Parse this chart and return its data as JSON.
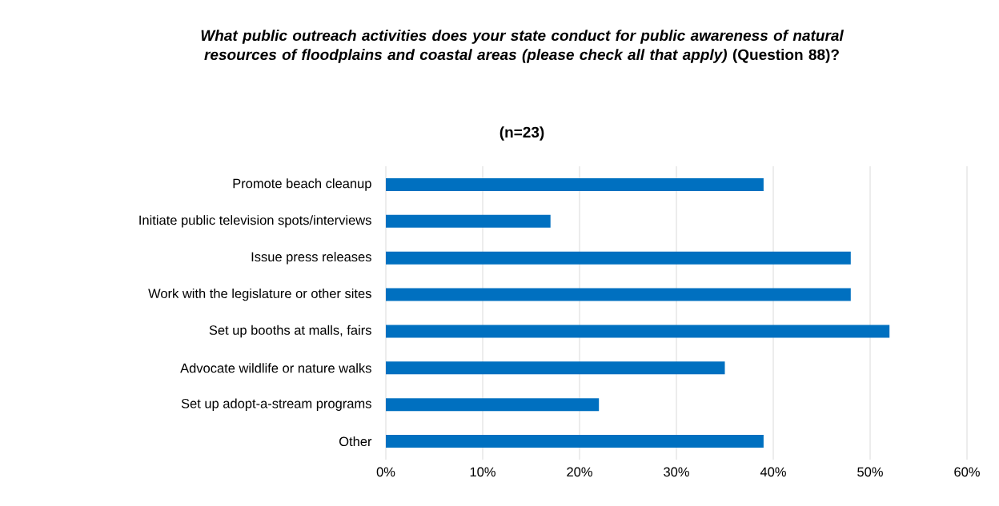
{
  "chart_data": {
    "type": "bar",
    "orientation": "horizontal",
    "title": "*What public outreach activities does your state conduct for public awareness of natural resources of floodplains and coastal areas (please check all that apply)* (Question 88)?",
    "subtitle": "(n=23)",
    "categories": [
      "Promote beach cleanup",
      "Initiate public television spots/interviews",
      "Issue press releases",
      "Work with the legislature or other sites",
      "Set up booths at malls, fairs",
      "Advocate wildlife or nature walks",
      "Set up adopt-a-stream programs",
      "Other"
    ],
    "values": [
      39,
      17,
      48,
      48,
      52,
      35,
      22,
      39
    ],
    "color": "#0070c0",
    "xlim": [
      0,
      60
    ],
    "xticks": [
      {
        "value": 0,
        "label": "0%"
      },
      {
        "value": 10,
        "label": "10%"
      },
      {
        "value": 20,
        "label": "20%"
      },
      {
        "value": 30,
        "label": "30%"
      },
      {
        "value": 40,
        "label": "40%"
      },
      {
        "value": 50,
        "label": "50%"
      },
      {
        "value": 60,
        "label": "60%"
      }
    ],
    "grid": "x"
  }
}
